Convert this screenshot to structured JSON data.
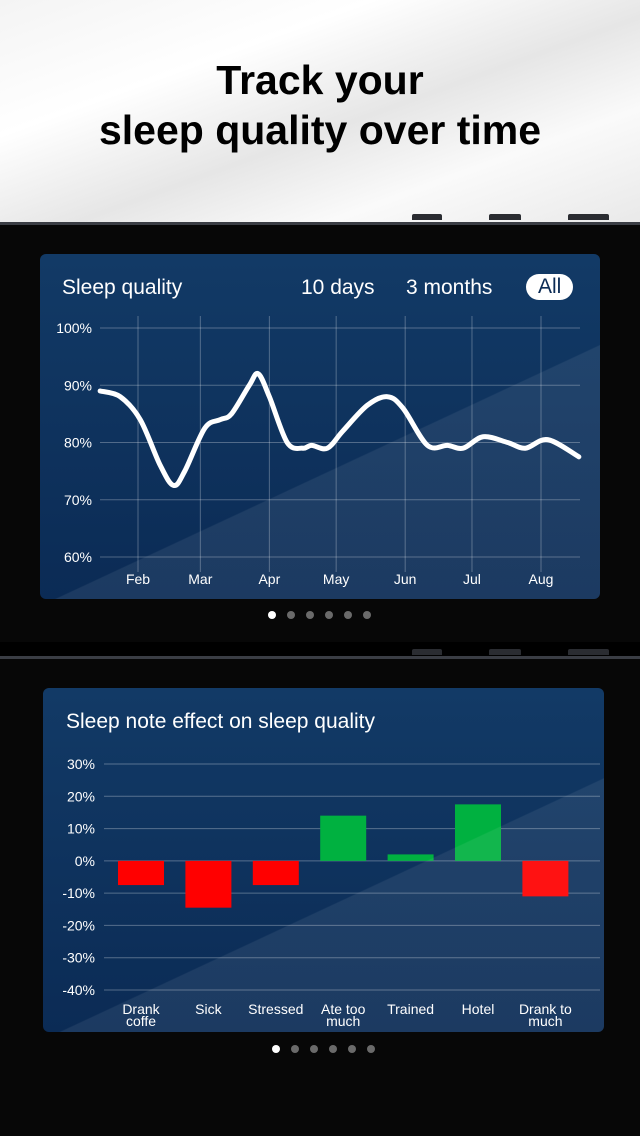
{
  "headline": {
    "line1": "Track your",
    "line2": "sleep quality over time"
  },
  "quality_panel": {
    "title": "Sleep quality",
    "ranges": [
      {
        "label": "10 days",
        "selected": false
      },
      {
        "label": "3 months",
        "selected": false
      },
      {
        "label": "All",
        "selected": true
      }
    ],
    "page_dots": {
      "count": 6,
      "active": 0
    }
  },
  "notes_panel": {
    "title": "Sleep note effect on sleep quality",
    "page_dots": {
      "count": 6,
      "active": 0
    }
  },
  "colors": {
    "panel": "#0b2b55",
    "positive": "#00b140",
    "negative": "#ff0000",
    "line": "#ffffff"
  },
  "chart_data": [
    {
      "type": "line",
      "title": "Sleep quality",
      "ylim": [
        60,
        100
      ],
      "yticks": [
        "100%",
        "90%",
        "80%",
        "70%",
        "60%"
      ],
      "ytick_values": [
        100,
        90,
        80,
        70,
        60
      ],
      "xticks": [
        "Feb",
        "Mar",
        "Apr",
        "May",
        "Jun",
        "Jul",
        "Aug"
      ],
      "xtick_dates": [
        "02-01",
        "03-01",
        "04-01",
        "05-01",
        "06-01",
        "07-01",
        "08-01"
      ],
      "grid": true,
      "series": [
        {
          "points": [
            [
              "01-15",
              89
            ],
            [
              "01-24",
              88
            ],
            [
              "02-02",
              84
            ],
            [
              "02-11",
              76
            ],
            [
              "02-17",
              72.5
            ],
            [
              "02-22",
              75
            ],
            [
              "03-03",
              82.5
            ],
            [
              "03-10",
              84
            ],
            [
              "03-15",
              85
            ],
            [
              "03-23",
              90
            ],
            [
              "03-27",
              92
            ],
            [
              "04-01",
              88
            ],
            [
              "04-09",
              80
            ],
            [
              "04-16",
              79
            ],
            [
              "04-20",
              79.5
            ],
            [
              "04-27",
              79
            ],
            [
              "05-04",
              82
            ],
            [
              "05-15",
              86.5
            ],
            [
              "05-24",
              88
            ],
            [
              "05-31",
              86
            ],
            [
              "06-11",
              79.5
            ],
            [
              "06-20",
              79.5
            ],
            [
              "06-27",
              79
            ],
            [
              "07-06",
              81
            ],
            [
              "07-17",
              80
            ],
            [
              "07-25",
              79
            ],
            [
              "08-04",
              80.5
            ],
            [
              "08-18",
              77.5
            ]
          ]
        }
      ]
    },
    {
      "type": "bar",
      "title": "Sleep note effect on sleep quality",
      "ylim": [
        -40,
        30
      ],
      "yticks": [
        "30%",
        "20%",
        "10%",
        "0%",
        "-10%",
        "-20%",
        "-30%",
        "-40%"
      ],
      "ytick_values": [
        30,
        20,
        10,
        0,
        -10,
        -20,
        -30,
        -40
      ],
      "categories": [
        [
          "Drank",
          "coffe"
        ],
        [
          "Sick"
        ],
        [
          "Stressed"
        ],
        [
          "Ate too",
          "much"
        ],
        [
          "Trained"
        ],
        [
          "Hotel"
        ],
        [
          "Drank to",
          "much"
        ]
      ],
      "values": [
        -7.5,
        -14.5,
        -7.5,
        14,
        2,
        17.5,
        -11
      ],
      "grid": true
    }
  ]
}
